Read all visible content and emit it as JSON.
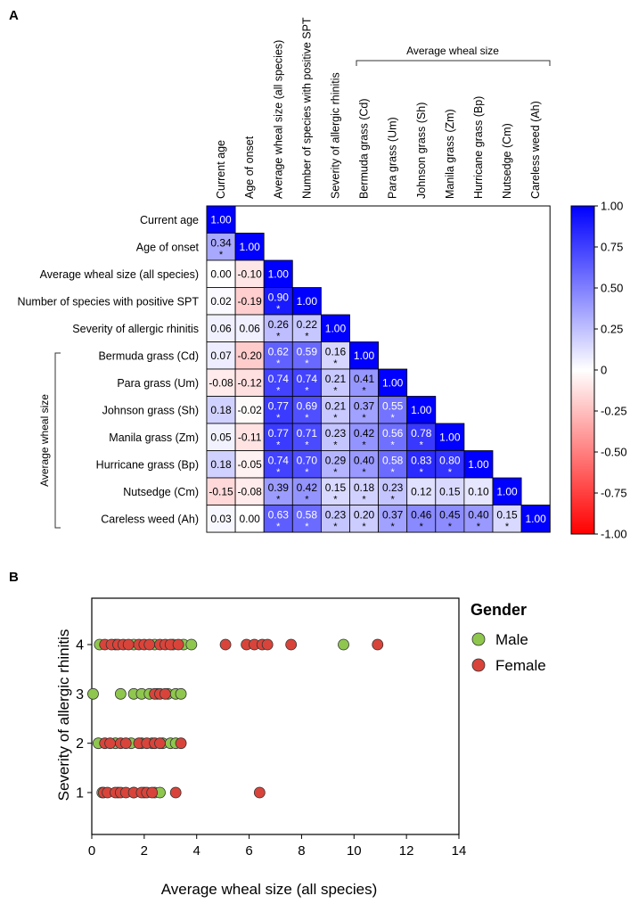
{
  "chart_data": [
    {
      "type": "heatmap",
      "panel_label": "A",
      "row_labels": [
        "Current age",
        "Age of onset",
        "Average wheal size (all species)",
        "Number of species with positive SPT",
        "Severity of allergic rhinitis",
        "Bermuda grass (Cd)",
        "Para grass (Um)",
        "Johnson grass (Sh)",
        "Manila grass (Zm)",
        "Hurricane grass (Bp)",
        "Nutsedge (Cm)",
        "Careless weed (Ah)"
      ],
      "column_labels": [
        "Current age",
        "Age of onset",
        "Average wheal size (all species)",
        "Number of species with positive SPT",
        "Severity of allergic rhinitis",
        "Bermuda grass (Cd)",
        "Para grass (Um)",
        "Johnson grass (Sh)",
        "Manila grass (Zm)",
        "Hurricane grass (Bp)",
        "Nutsedge (Cm)",
        "Careless weed (Ah)"
      ],
      "values": [
        [
          1.0
        ],
        [
          0.34,
          1.0
        ],
        [
          0.0,
          -0.1,
          1.0
        ],
        [
          0.02,
          -0.19,
          0.9,
          1.0
        ],
        [
          0.06,
          0.06,
          0.26,
          0.22,
          1.0
        ],
        [
          0.07,
          -0.2,
          0.62,
          0.59,
          0.16,
          1.0
        ],
        [
          -0.08,
          -0.12,
          0.74,
          0.74,
          0.21,
          0.41,
          1.0
        ],
        [
          0.18,
          -0.02,
          0.77,
          0.69,
          0.21,
          0.37,
          0.55,
          1.0
        ],
        [
          0.05,
          -0.11,
          0.77,
          0.71,
          0.23,
          0.42,
          0.56,
          0.78,
          1.0
        ],
        [
          0.18,
          -0.05,
          0.74,
          0.7,
          0.29,
          0.4,
          0.58,
          0.83,
          0.8,
          1.0
        ],
        [
          -0.15,
          -0.08,
          0.39,
          0.42,
          0.15,
          0.18,
          0.23,
          0.12,
          0.15,
          0.1,
          1.0
        ],
        [
          0.03,
          0.0,
          0.63,
          0.58,
          0.23,
          0.2,
          0.37,
          0.46,
          0.45,
          0.4,
          0.15,
          1.0
        ]
      ],
      "value_labels": [
        [
          "1.00"
        ],
        [
          "0.34",
          "1.00"
        ],
        [
          "0.00",
          "-0.10",
          "1.00"
        ],
        [
          "0.02",
          "-0.19",
          "0.90",
          "1.00"
        ],
        [
          "0.06",
          "0.06",
          "0.26",
          "0.22",
          "1.00"
        ],
        [
          "0.07",
          "-0.20",
          "0.62",
          "0.59",
          "0.16",
          "1.00"
        ],
        [
          "-0.08",
          "-0.12",
          "0.74",
          "0.74",
          "0.21",
          "0.41",
          "1.00"
        ],
        [
          "0.18",
          "-0.02",
          "0.77",
          "0.69",
          "0.21",
          "0.37",
          "0.55",
          "1.00"
        ],
        [
          "0.05",
          "-0.11",
          "0.77",
          "0.71",
          "0.23",
          "0.42",
          "0.56",
          "0.78",
          "1.00"
        ],
        [
          "0.18",
          "-0.05",
          "0.74",
          "0.70",
          "0.29",
          "0.40",
          "0.58",
          "0.83",
          "0.80",
          "1.00"
        ],
        [
          "-0.15",
          "-0.08",
          "0.39",
          "0.42",
          "0.15",
          "0.18",
          "0.23",
          "0.12",
          "0.15",
          "0.10",
          "1.00"
        ],
        [
          "0.03",
          "0.00",
          "0.63",
          "0.58",
          "0.23",
          "0.20",
          "0.37",
          "0.46",
          "0.45",
          "0.40",
          "0.15",
          "1.00"
        ]
      ],
      "significance_marker": "*",
      "significant": [
        [
          false
        ],
        [
          true,
          false
        ],
        [
          false,
          false,
          false
        ],
        [
          false,
          false,
          true,
          false
        ],
        [
          false,
          false,
          true,
          true,
          false
        ],
        [
          false,
          false,
          true,
          true,
          true,
          false
        ],
        [
          false,
          false,
          true,
          true,
          true,
          true,
          false
        ],
        [
          false,
          false,
          true,
          true,
          true,
          true,
          true,
          false
        ],
        [
          false,
          false,
          true,
          true,
          true,
          true,
          true,
          true,
          false
        ],
        [
          false,
          false,
          true,
          true,
          true,
          true,
          true,
          true,
          true,
          false
        ],
        [
          false,
          false,
          true,
          true,
          true,
          true,
          true,
          false,
          false,
          false,
          false
        ],
        [
          false,
          false,
          true,
          true,
          true,
          true,
          true,
          true,
          true,
          true,
          true,
          false
        ]
      ],
      "group_label": "Average wheal size",
      "group_start_index": 5,
      "group_end_index": 11,
      "colorbar": {
        "min": -1.0,
        "max": 1.0,
        "ticks": [
          1.0,
          0.75,
          0.5,
          0.25,
          0,
          -0.25,
          -0.5,
          -0.75,
          -1.0
        ],
        "tick_labels": [
          "1.00",
          "0.75",
          "0.50",
          "0.25",
          "0",
          "-0.25",
          "-0.50",
          "-0.75",
          "-1.00"
        ],
        "color_low": "#ff0000",
        "color_mid": "#ffffff",
        "color_high": "#0000ff"
      }
    },
    {
      "type": "scatter",
      "panel_label": "B",
      "xlabel": "Average wheal size (all species)",
      "ylabel": "Severity of allergic rhinitis",
      "xlim": [
        0,
        14
      ],
      "ylim": [
        0.55,
        4.6
      ],
      "x_ticks": [
        0,
        2,
        4,
        6,
        8,
        10,
        12,
        14
      ],
      "x_tick_labels": [
        "0",
        "2",
        "4",
        "6",
        "8",
        "10",
        "12",
        "14"
      ],
      "y_ticks": [
        1,
        2,
        3,
        4
      ],
      "y_tick_labels": [
        "1",
        "2",
        "3",
        "4"
      ],
      "legend_title": "Gender",
      "series": [
        {
          "name": "Male",
          "color": "#8fc74e",
          "points": [
            [
              0.3,
              4
            ],
            [
              0.9,
              4
            ],
            [
              1.6,
              4
            ],
            [
              2.4,
              4
            ],
            [
              3.1,
              4
            ],
            [
              3.5,
              4
            ],
            [
              3.8,
              4
            ],
            [
              9.6,
              4
            ],
            [
              0.05,
              3
            ],
            [
              1.1,
              3
            ],
            [
              1.6,
              3
            ],
            [
              1.9,
              3
            ],
            [
              2.2,
              3
            ],
            [
              2.5,
              3
            ],
            [
              2.9,
              3
            ],
            [
              3.2,
              3
            ],
            [
              3.4,
              3
            ],
            [
              0.25,
              2
            ],
            [
              0.9,
              2
            ],
            [
              1.5,
              2
            ],
            [
              1.9,
              2
            ],
            [
              2.3,
              2
            ],
            [
              2.7,
              2
            ],
            [
              3.0,
              2
            ],
            [
              3.2,
              2
            ],
            [
              0.4,
              1
            ],
            [
              1.0,
              1
            ],
            [
              1.6,
              1
            ],
            [
              2.0,
              1
            ],
            [
              2.4,
              1
            ],
            [
              2.6,
              1
            ]
          ]
        },
        {
          "name": "Female",
          "color": "#d9443a",
          "points": [
            [
              0.5,
              4
            ],
            [
              0.75,
              4
            ],
            [
              1.0,
              4
            ],
            [
              1.2,
              4
            ],
            [
              1.4,
              4
            ],
            [
              1.8,
              4
            ],
            [
              2.0,
              4
            ],
            [
              2.2,
              4
            ],
            [
              2.6,
              4
            ],
            [
              2.8,
              4
            ],
            [
              3.0,
              4
            ],
            [
              3.3,
              4
            ],
            [
              5.1,
              4
            ],
            [
              5.9,
              4
            ],
            [
              6.2,
              4
            ],
            [
              6.5,
              4
            ],
            [
              6.7,
              4
            ],
            [
              7.6,
              4
            ],
            [
              10.9,
              4
            ],
            [
              2.4,
              3
            ],
            [
              2.6,
              3
            ],
            [
              2.8,
              3
            ],
            [
              0.5,
              2
            ],
            [
              0.7,
              2
            ],
            [
              1.1,
              2
            ],
            [
              1.3,
              2
            ],
            [
              1.8,
              2
            ],
            [
              2.1,
              2
            ],
            [
              2.4,
              2
            ],
            [
              2.6,
              2
            ],
            [
              3.4,
              2
            ],
            [
              0.45,
              1
            ],
            [
              0.6,
              1
            ],
            [
              0.9,
              1
            ],
            [
              1.1,
              1
            ],
            [
              1.3,
              1
            ],
            [
              1.6,
              1
            ],
            [
              1.9,
              1
            ],
            [
              2.1,
              1
            ],
            [
              2.3,
              1
            ],
            [
              3.2,
              1
            ],
            [
              6.4,
              1
            ]
          ]
        }
      ]
    }
  ]
}
